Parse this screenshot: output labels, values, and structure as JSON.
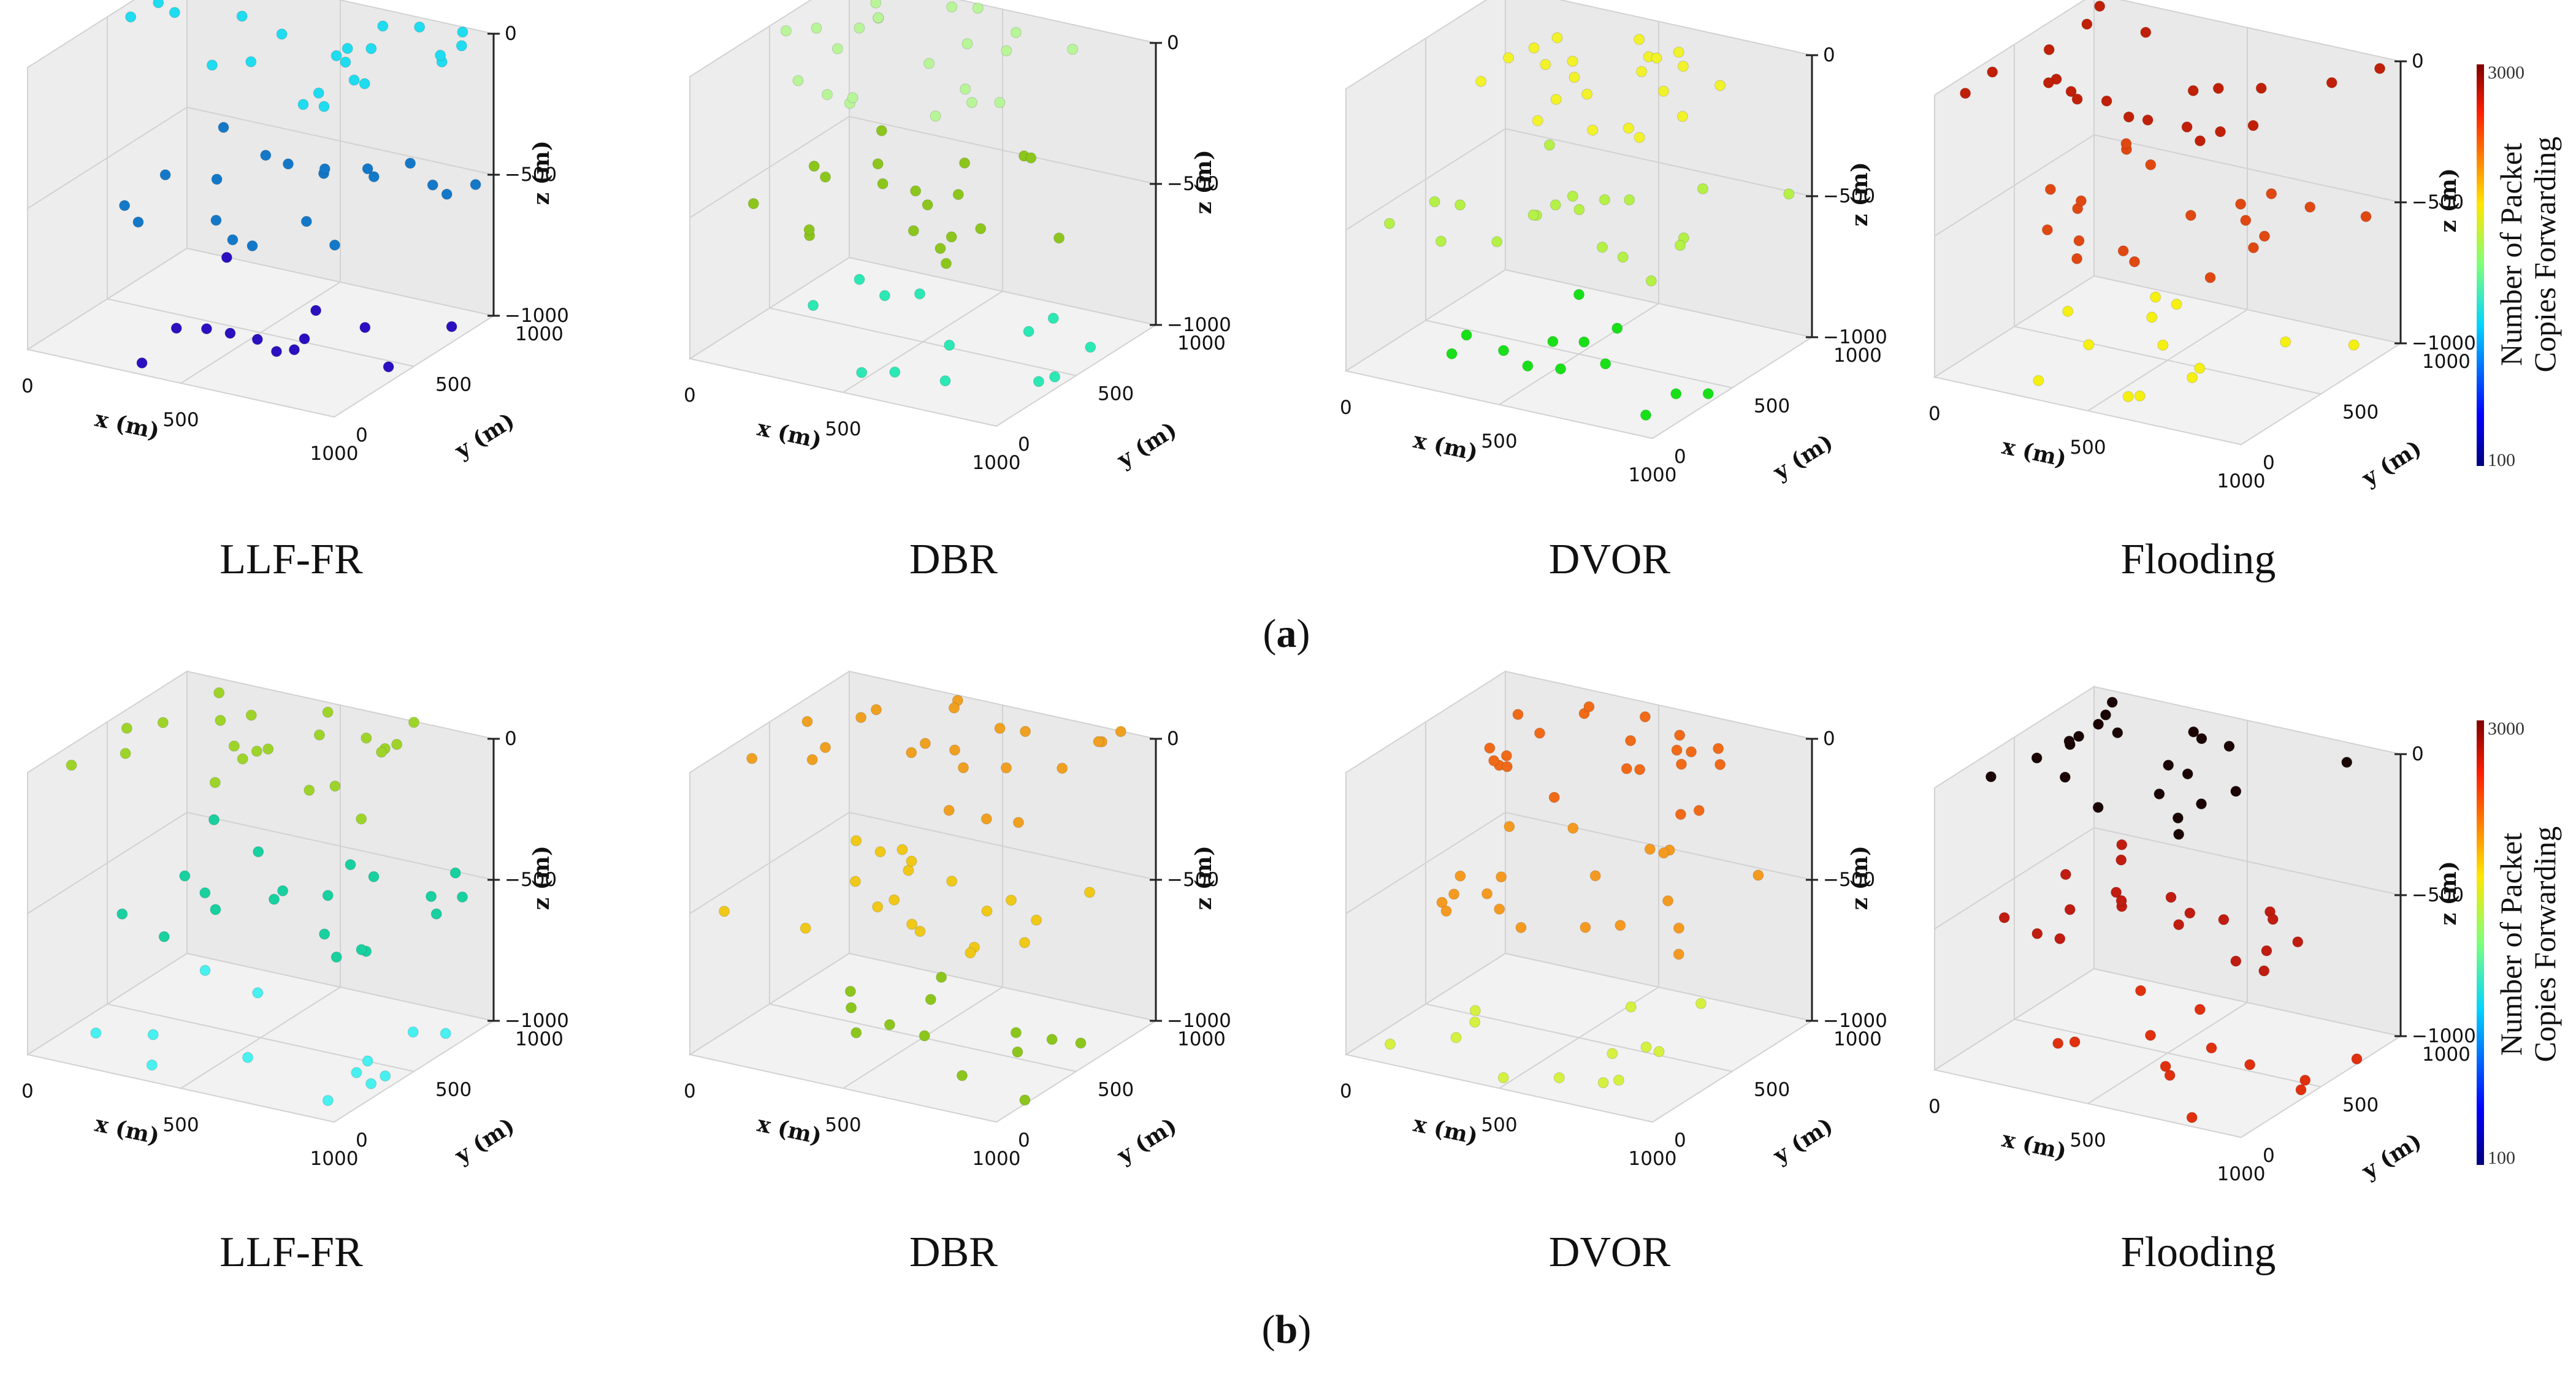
{
  "figure": {
    "rows": [
      {
        "caption_open": "(",
        "caption_letter": "a",
        "caption_close": ")"
      },
      {
        "caption_open": "(",
        "caption_letter": "b",
        "caption_close": ")"
      }
    ],
    "colorbar": {
      "label_line1": "Number of Packet",
      "label_line2": "Copies Forwarding",
      "min_label": "100",
      "max_label": "3000"
    }
  },
  "chart_data": [
    {
      "type": "scatter3d",
      "row": "a",
      "title": "LLF-FR",
      "xlabel": "x (m)",
      "ylabel": "y (m)",
      "zlabel": "z (m)",
      "xticks": [
        "0",
        "500",
        "1000"
      ],
      "yticks": [
        "0",
        "500",
        "1000"
      ],
      "zticks": [
        "0",
        "−500",
        "−1000"
      ],
      "xlim": [
        0,
        1000
      ],
      "ylim": [
        0,
        1000
      ],
      "zlim": [
        -1000,
        0
      ],
      "colorbar_range": [
        100,
        3000
      ],
      "layers": [
        {
          "z": 0,
          "count": 22,
          "color": "#1fdcf0"
        },
        {
          "z": -500,
          "count": 20,
          "color": "#1478c8"
        },
        {
          "z": -1000,
          "count": 13,
          "color": "#2a10c0"
        }
      ]
    },
    {
      "type": "scatter3d",
      "row": "a",
      "title": "DBR",
      "xlabel": "x (m)",
      "ylabel": "y (m)",
      "zlabel": "z (m)",
      "xticks": [
        "0",
        "500",
        "1000"
      ],
      "yticks": [
        "0",
        "500",
        "1000"
      ],
      "zticks": [
        "0",
        "−500",
        "−1000"
      ],
      "xlim": [
        0,
        1000
      ],
      "ylim": [
        0,
        1000
      ],
      "zlim": [
        -1000,
        0
      ],
      "colorbar_range": [
        100,
        3000
      ],
      "layers": [
        {
          "z": 0,
          "count": 22,
          "color": "#b8f598"
        },
        {
          "z": -500,
          "count": 20,
          "color": "#8cc61c"
        },
        {
          "z": -1000,
          "count": 13,
          "color": "#2ce8b4"
        }
      ]
    },
    {
      "type": "scatter3d",
      "row": "a",
      "title": "DVOR",
      "xlabel": "x (m)",
      "ylabel": "y (m)",
      "zlabel": "z (m)",
      "xticks": [
        "0",
        "500",
        "1000"
      ],
      "yticks": [
        "0",
        "500",
        "1000"
      ],
      "zticks": [
        "0",
        "−500",
        "−1000"
      ],
      "xlim": [
        0,
        1000
      ],
      "ylim": [
        0,
        1000
      ],
      "zlim": [
        -1000,
        0
      ],
      "colorbar_range": [
        100,
        3000
      ],
      "layers": [
        {
          "z": 0,
          "count": 22,
          "color": "#f2f22a"
        },
        {
          "z": -500,
          "count": 20,
          "color": "#b4f046"
        },
        {
          "z": -1000,
          "count": 13,
          "color": "#18e018"
        }
      ]
    },
    {
      "type": "scatter3d",
      "row": "a",
      "title": "Flooding",
      "xlabel": "x (m)",
      "ylabel": "y (m)",
      "zlabel": "z (m)",
      "xticks": [
        "0",
        "500",
        "1000"
      ],
      "yticks": [
        "0",
        "500",
        "1000"
      ],
      "zticks": [
        "0",
        "−500",
        "−1000"
      ],
      "xlim": [
        0,
        1000
      ],
      "ylim": [
        0,
        1000
      ],
      "zlim": [
        -1000,
        0
      ],
      "colorbar_range": [
        100,
        3000
      ],
      "layers": [
        {
          "z": 0,
          "count": 22,
          "color": "#c02008"
        },
        {
          "z": -500,
          "count": 20,
          "color": "#e04812"
        },
        {
          "z": -1000,
          "count": 13,
          "color": "#f5f010"
        }
      ]
    },
    {
      "type": "scatter3d",
      "row": "b",
      "title": "LLF-FR",
      "xlabel": "x (m)",
      "ylabel": "y (m)",
      "zlabel": "z (m)",
      "xticks": [
        "0",
        "500",
        "1000"
      ],
      "yticks": [
        "0",
        "500",
        "1000"
      ],
      "zticks": [
        "0",
        "−500",
        "−1000"
      ],
      "xlim": [
        0,
        1000
      ],
      "ylim": [
        0,
        1000
      ],
      "zlim": [
        -1000,
        0
      ],
      "colorbar_range": [
        100,
        3000
      ],
      "layers": [
        {
          "z": 0,
          "count": 22,
          "color": "#9ed42a"
        },
        {
          "z": -500,
          "count": 20,
          "color": "#18d0a0"
        },
        {
          "z": -1000,
          "count": 13,
          "color": "#48f0f0"
        }
      ]
    },
    {
      "type": "scatter3d",
      "row": "b",
      "title": "DBR",
      "xlabel": "x (m)",
      "ylabel": "y (m)",
      "zlabel": "z (m)",
      "xticks": [
        "0",
        "500",
        "1000"
      ],
      "yticks": [
        "0",
        "500",
        "1000"
      ],
      "zticks": [
        "0",
        "−500",
        "−1000"
      ],
      "xlim": [
        0,
        1000
      ],
      "ylim": [
        0,
        1000
      ],
      "zlim": [
        -1000,
        0
      ],
      "colorbar_range": [
        100,
        3000
      ],
      "layers": [
        {
          "z": 0,
          "count": 22,
          "color": "#f0a020"
        },
        {
          "z": -500,
          "count": 20,
          "color": "#f0c818"
        },
        {
          "z": -1000,
          "count": 13,
          "color": "#8cc61c"
        }
      ]
    },
    {
      "type": "scatter3d",
      "row": "b",
      "title": "DVOR",
      "xlabel": "x (m)",
      "ylabel": "y (m)",
      "zlabel": "z (m)",
      "xticks": [
        "0",
        "500",
        "1000"
      ],
      "yticks": [
        "0",
        "500",
        "1000"
      ],
      "zticks": [
        "0",
        "−500",
        "−1000"
      ],
      "xlim": [
        0,
        1000
      ],
      "ylim": [
        0,
        1000
      ],
      "zlim": [
        -1000,
        0
      ],
      "colorbar_range": [
        100,
        3000
      ],
      "layers": [
        {
          "z": 0,
          "count": 22,
          "color": "#f06a18"
        },
        {
          "z": -500,
          "count": 20,
          "color": "#f59a20"
        },
        {
          "z": -1000,
          "count": 13,
          "color": "#d6f040"
        }
      ]
    },
    {
      "type": "scatter3d",
      "row": "b",
      "title": "Flooding",
      "xlabel": "x (m)",
      "ylabel": "y (m)",
      "zlabel": "z (m)",
      "xticks": [
        "0",
        "500",
        "1000"
      ],
      "yticks": [
        "0",
        "500",
        "1000"
      ],
      "zticks": [
        "0",
        "−500",
        "−1000"
      ],
      "xlim": [
        0,
        1000
      ],
      "ylim": [
        0,
        1000
      ],
      "zlim": [
        -1000,
        0
      ],
      "colorbar_range": [
        100,
        3000
      ],
      "layers": [
        {
          "z": 0,
          "count": 22,
          "color": "#1a0404"
        },
        {
          "z": -500,
          "count": 20,
          "color": "#c01c10"
        },
        {
          "z": -1000,
          "count": 13,
          "color": "#e0300e"
        }
      ]
    }
  ]
}
